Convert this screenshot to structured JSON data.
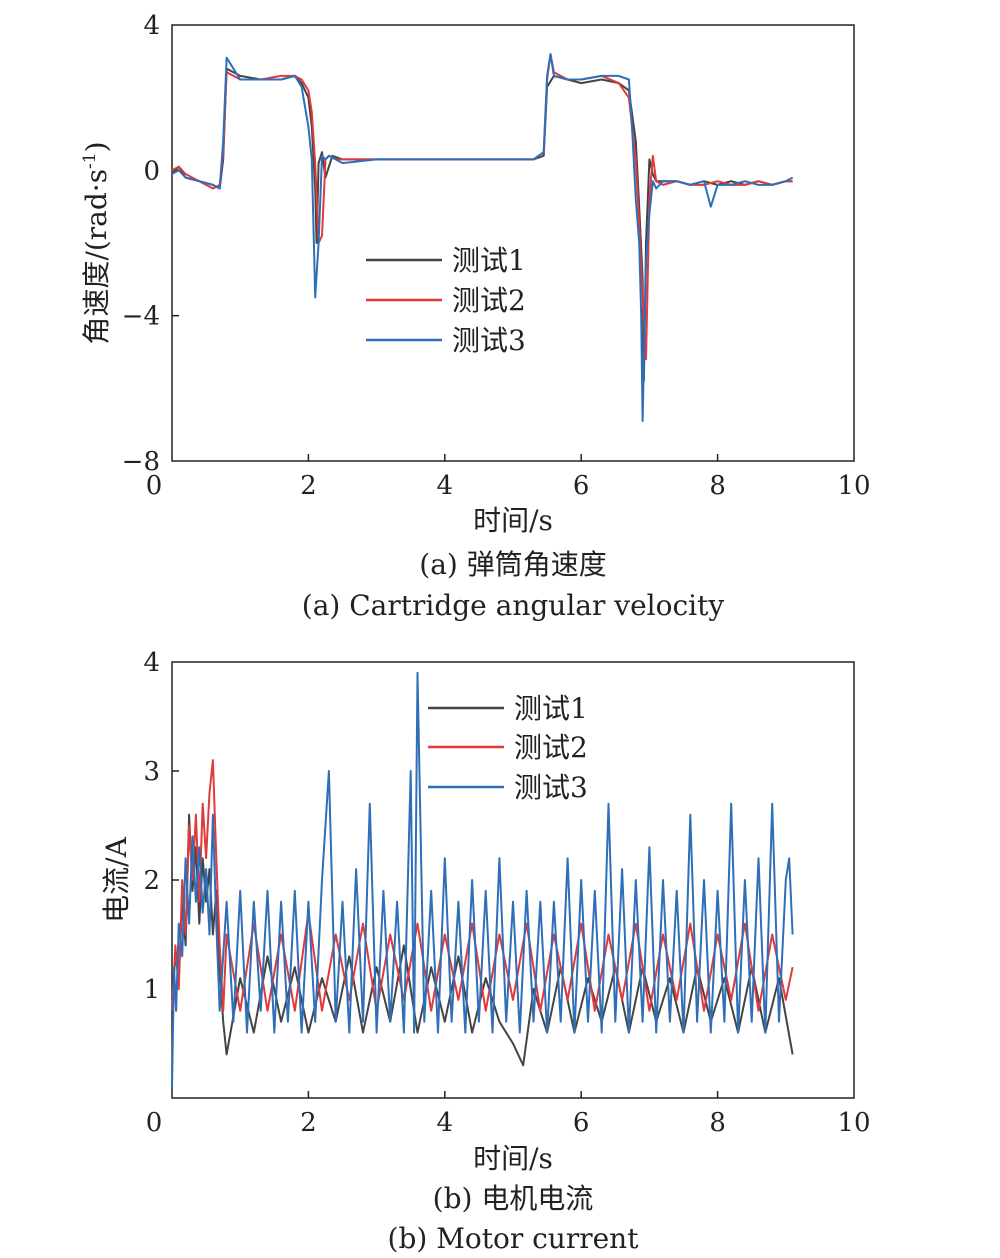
{
  "chart_data": [
    {
      "type": "line",
      "caption_cn": "(a) 弹筒角速度",
      "caption_en": "(a) Cartridge angular velocity",
      "xlabel": "时间/s",
      "ylabel": "角速度/(rad·s",
      "ylabel_sup": "-1",
      "ylabel_end": ")",
      "xlim": [
        0,
        10
      ],
      "ylim": [
        -8,
        4
      ],
      "xticks": [
        "0",
        "2",
        "4",
        "6",
        "8",
        "10"
      ],
      "yticks": [
        "−8",
        "−4",
        "0",
        "4"
      ],
      "legend_position": "center",
      "series": [
        {
          "name": "测试1",
          "color": "#444444",
          "x": [
            0,
            0.1,
            0.2,
            0.4,
            0.6,
            0.7,
            0.75,
            0.8,
            1.0,
            1.3,
            1.6,
            1.8,
            1.9,
            2.0,
            2.05,
            2.1,
            2.12,
            2.15,
            2.2,
            2.25,
            2.35,
            2.5,
            3.0,
            3.5,
            4.0,
            4.5,
            5.0,
            5.3,
            5.45,
            5.5,
            5.6,
            5.8,
            6.0,
            6.3,
            6.55,
            6.7,
            6.8,
            6.85,
            6.9,
            6.92,
            6.95,
            7.0,
            7.05,
            7.1,
            7.2,
            7.4,
            7.6,
            7.8,
            8.0,
            8.2,
            8.4,
            8.6,
            8.8,
            9.0,
            9.1
          ],
          "y": [
            -0.1,
            0.1,
            -0.2,
            -0.3,
            -0.4,
            -0.5,
            0.3,
            2.8,
            2.6,
            2.5,
            2.5,
            2.6,
            2.4,
            2.0,
            1.2,
            -0.5,
            -2.0,
            0.2,
            0.5,
            -0.2,
            0.4,
            0.3,
            0.3,
            0.3,
            0.3,
            0.3,
            0.3,
            0.3,
            0.4,
            2.3,
            2.6,
            2.5,
            2.4,
            2.5,
            2.4,
            2.2,
            0.8,
            -1.0,
            -3.0,
            -5.8,
            -2.0,
            0.3,
            -0.1,
            -0.3,
            -0.3,
            -0.3,
            -0.4,
            -0.3,
            -0.4,
            -0.3,
            -0.4,
            -0.3,
            -0.4,
            -0.3,
            -0.3
          ]
        },
        {
          "name": "测试2",
          "color": "#e2393c",
          "x": [
            0,
            0.1,
            0.2,
            0.4,
            0.6,
            0.7,
            0.75,
            0.8,
            1.0,
            1.3,
            1.6,
            1.8,
            1.9,
            2.0,
            2.05,
            2.1,
            2.15,
            2.2,
            2.25,
            2.3,
            2.4,
            2.5,
            3.0,
            3.5,
            4.0,
            4.5,
            5.0,
            5.3,
            5.45,
            5.5,
            5.55,
            5.6,
            5.8,
            6.0,
            6.3,
            6.55,
            6.7,
            6.8,
            6.85,
            6.9,
            6.95,
            7.0,
            7.05,
            7.1,
            7.2,
            7.4,
            7.6,
            7.8,
            8.0,
            8.2,
            8.4,
            8.6,
            8.8,
            9.0,
            9.1
          ],
          "y": [
            0,
            0.1,
            -0.1,
            -0.3,
            -0.5,
            -0.4,
            0.5,
            2.7,
            2.5,
            2.5,
            2.6,
            2.6,
            2.5,
            2.2,
            1.6,
            0.2,
            -2.0,
            -1.8,
            0.3,
            0.4,
            0.3,
            0.3,
            0.3,
            0.3,
            0.3,
            0.3,
            0.3,
            0.3,
            0.5,
            2.5,
            3.2,
            2.7,
            2.5,
            2.5,
            2.6,
            2.4,
            2.0,
            0.3,
            -1.5,
            -3.5,
            -5.2,
            -0.8,
            0.4,
            -0.3,
            -0.4,
            -0.3,
            -0.4,
            -0.4,
            -0.3,
            -0.4,
            -0.4,
            -0.3,
            -0.4,
            -0.3,
            -0.3
          ]
        },
        {
          "name": "测试3",
          "color": "#2f6fb8",
          "x": [
            0,
            0.1,
            0.2,
            0.4,
            0.6,
            0.7,
            0.75,
            0.8,
            1.0,
            1.3,
            1.6,
            1.8,
            1.9,
            2.0,
            2.05,
            2.08,
            2.1,
            2.15,
            2.2,
            2.25,
            2.3,
            2.4,
            2.5,
            3.0,
            3.5,
            4.0,
            4.5,
            5.0,
            5.3,
            5.45,
            5.5,
            5.55,
            5.6,
            5.8,
            6.0,
            6.3,
            6.55,
            6.7,
            6.75,
            6.8,
            6.85,
            6.88,
            6.9,
            6.95,
            7.0,
            7.05,
            7.1,
            7.2,
            7.4,
            7.6,
            7.8,
            7.9,
            8.0,
            8.2,
            8.4,
            8.6,
            8.8,
            9.0,
            9.1
          ],
          "y": [
            -0.1,
            0.0,
            -0.2,
            -0.3,
            -0.4,
            -0.5,
            0.8,
            3.1,
            2.5,
            2.5,
            2.5,
            2.6,
            2.3,
            1.2,
            0.3,
            -2.0,
            -3.5,
            -2.0,
            0.4,
            0.3,
            0.4,
            0.3,
            0.2,
            0.3,
            0.3,
            0.3,
            0.3,
            0.3,
            0.3,
            0.5,
            2.6,
            3.2,
            2.6,
            2.5,
            2.5,
            2.6,
            2.6,
            2.5,
            1.0,
            -0.8,
            -2.0,
            -4.0,
            -6.9,
            -2.5,
            -1.2,
            -0.3,
            -0.5,
            -0.3,
            -0.3,
            -0.4,
            -0.3,
            -1.0,
            -0.4,
            -0.4,
            -0.3,
            -0.4,
            -0.4,
            -0.3,
            -0.2
          ]
        }
      ]
    },
    {
      "type": "line",
      "caption_cn": "(b) 电机电流",
      "caption_en": "(b) Motor current",
      "xlabel": "时间/s",
      "ylabel": "电流/A",
      "xlim": [
        0,
        10
      ],
      "ylim": [
        0,
        4
      ],
      "xticks": [
        "0",
        "2",
        "4",
        "6",
        "8",
        "10"
      ],
      "yticks": [
        "1",
        "2",
        "3",
        "4"
      ],
      "legend_position": "top-center",
      "series": [
        {
          "name": "测试1",
          "color": "#444444",
          "x": [
            0,
            0.05,
            0.1,
            0.15,
            0.2,
            0.25,
            0.3,
            0.35,
            0.4,
            0.45,
            0.5,
            0.55,
            0.6,
            0.65,
            0.7,
            0.75,
            0.8,
            1.0,
            1.2,
            1.4,
            1.6,
            1.8,
            2.0,
            2.2,
            2.4,
            2.6,
            2.8,
            3.0,
            3.2,
            3.4,
            3.6,
            3.8,
            4.0,
            4.2,
            4.4,
            4.6,
            4.8,
            5.0,
            5.15,
            5.3,
            5.5,
            5.7,
            5.9,
            6.1,
            6.3,
            6.5,
            6.7,
            6.9,
            7.1,
            7.3,
            7.5,
            7.7,
            7.9,
            8.1,
            8.3,
            8.5,
            8.7,
            8.9,
            9.1
          ],
          "y": [
            0.9,
            1.3,
            1.1,
            1.8,
            1.4,
            2.6,
            1.9,
            2.3,
            1.6,
            2.2,
            1.8,
            2.1,
            1.5,
            1.9,
            1.2,
            0.7,
            0.4,
            1.1,
            0.6,
            1.3,
            0.7,
            1.2,
            0.6,
            1.1,
            0.7,
            1.3,
            0.6,
            1.2,
            0.7,
            1.4,
            0.6,
            1.2,
            0.7,
            1.3,
            0.6,
            1.1,
            0.7,
            0.5,
            0.3,
            1.0,
            0.6,
            1.2,
            0.6,
            1.1,
            0.7,
            1.2,
            0.6,
            1.2,
            0.7,
            1.1,
            0.6,
            1.2,
            0.7,
            1.1,
            0.6,
            1.2,
            0.6,
            1.1,
            0.4
          ]
        },
        {
          "name": "测试2",
          "color": "#e2393c",
          "x": [
            0,
            0.05,
            0.1,
            0.15,
            0.2,
            0.25,
            0.3,
            0.35,
            0.4,
            0.45,
            0.5,
            0.55,
            0.6,
            0.65,
            0.7,
            0.75,
            0.8,
            1.0,
            1.2,
            1.4,
            1.6,
            1.8,
            2.0,
            2.2,
            2.4,
            2.6,
            2.8,
            3.0,
            3.2,
            3.4,
            3.6,
            3.8,
            4.0,
            4.2,
            4.4,
            4.6,
            4.8,
            5.0,
            5.2,
            5.4,
            5.6,
            5.8,
            6.0,
            6.2,
            6.4,
            6.6,
            6.8,
            7.0,
            7.2,
            7.4,
            7.6,
            7.8,
            8.0,
            8.2,
            8.4,
            8.6,
            8.8,
            9.0,
            9.1
          ],
          "y": [
            0.8,
            1.4,
            1.0,
            2.0,
            1.5,
            2.5,
            2.0,
            2.6,
            1.8,
            2.7,
            2.2,
            2.8,
            3.1,
            2.2,
            1.4,
            0.8,
            1.5,
            0.8,
            1.6,
            0.8,
            1.5,
            0.8,
            1.7,
            0.8,
            1.5,
            0.9,
            1.6,
            0.8,
            1.5,
            0.9,
            1.6,
            0.8,
            1.5,
            0.9,
            1.6,
            0.8,
            1.5,
            0.9,
            1.6,
            0.8,
            1.5,
            0.9,
            1.6,
            0.8,
            1.5,
            0.9,
            1.6,
            0.8,
            1.5,
            0.9,
            1.6,
            0.8,
            1.5,
            0.9,
            1.6,
            0.8,
            1.5,
            0.9,
            1.2
          ]
        },
        {
          "name": "测试3",
          "color": "#2f6fb8",
          "x": [
            0,
            0.03,
            0.06,
            0.1,
            0.15,
            0.2,
            0.25,
            0.3,
            0.35,
            0.4,
            0.45,
            0.5,
            0.55,
            0.6,
            0.65,
            0.7,
            0.8,
            0.9,
            1.0,
            1.1,
            1.2,
            1.3,
            1.4,
            1.5,
            1.6,
            1.7,
            1.8,
            1.9,
            2.0,
            2.1,
            2.2,
            2.3,
            2.4,
            2.5,
            2.6,
            2.7,
            2.8,
            2.9,
            3.0,
            3.1,
            3.2,
            3.3,
            3.4,
            3.5,
            3.55,
            3.6,
            3.7,
            3.8,
            3.9,
            4.0,
            4.1,
            4.2,
            4.3,
            4.4,
            4.5,
            4.6,
            4.7,
            4.8,
            4.9,
            5.0,
            5.1,
            5.2,
            5.3,
            5.4,
            5.5,
            5.6,
            5.7,
            5.8,
            5.9,
            6.0,
            6.1,
            6.2,
            6.3,
            6.4,
            6.5,
            6.6,
            6.7,
            6.8,
            6.9,
            7.0,
            7.1,
            7.2,
            7.3,
            7.4,
            7.5,
            7.6,
            7.7,
            7.8,
            7.9,
            8.0,
            8.1,
            8.2,
            8.3,
            8.4,
            8.5,
            8.6,
            8.7,
            8.8,
            8.9,
            9.0,
            9.05,
            9.1
          ],
          "y": [
            0.1,
            1.2,
            0.8,
            1.6,
            1.3,
            2.2,
            1.6,
            2.4,
            1.8,
            2.3,
            1.7,
            2.1,
            1.5,
            2.6,
            1.6,
            0.8,
            1.8,
            0.7,
            1.9,
            0.6,
            1.8,
            0.8,
            1.9,
            0.6,
            1.8,
            0.7,
            1.9,
            0.6,
            1.8,
            0.7,
            2.0,
            3.0,
            0.7,
            1.8,
            0.6,
            2.1,
            0.7,
            2.7,
            0.6,
            1.9,
            0.7,
            1.8,
            0.6,
            3.0,
            0.6,
            3.9,
            0.7,
            1.9,
            0.6,
            2.2,
            0.7,
            1.8,
            0.6,
            2.0,
            0.7,
            1.9,
            0.6,
            2.2,
            0.7,
            1.8,
            0.6,
            1.9,
            0.7,
            1.8,
            0.6,
            1.8,
            0.7,
            2.2,
            0.6,
            2.0,
            0.7,
            1.9,
            0.6,
            2.7,
            0.7,
            2.1,
            0.6,
            2.0,
            0.7,
            2.3,
            0.6,
            2.0,
            0.7,
            1.9,
            0.6,
            2.6,
            0.7,
            2.0,
            0.6,
            1.9,
            0.7,
            2.7,
            0.6,
            2.0,
            0.7,
            2.2,
            0.6,
            2.7,
            0.7,
            2.0,
            2.2,
            1.5
          ]
        }
      ]
    }
  ]
}
